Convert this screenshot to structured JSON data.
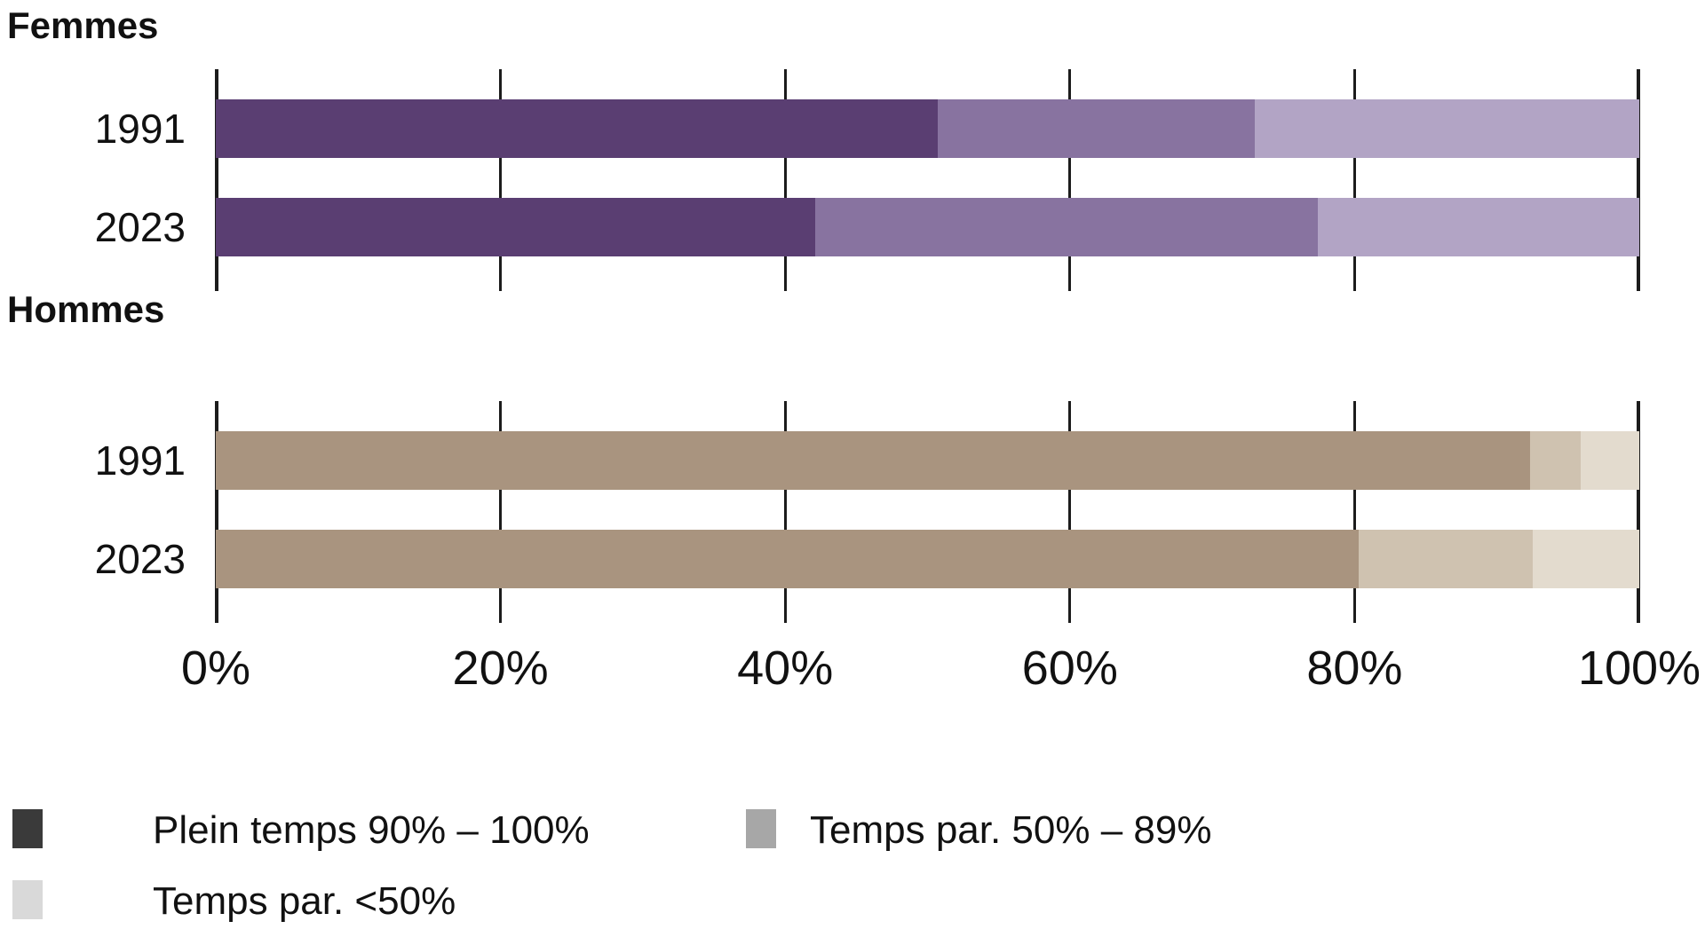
{
  "chart_data": {
    "type": "bar",
    "orientation": "horizontal",
    "stacked": true,
    "unit": "%",
    "xlim": [
      0,
      100
    ],
    "grid": "vertical-ticks",
    "legend_position": "bottom",
    "x_tick_labels": [
      "0%",
      "20%",
      "40%",
      "60%",
      "80%",
      "100%"
    ],
    "series_names": [
      "Plein temps 90% – 100%",
      "Temps par. 50% – 89%",
      "Temps par. <50%"
    ],
    "legend_swatch_colors": [
      "#3a3a3a",
      "#a7a7a7",
      "#d9d9d9"
    ],
    "groups": [
      {
        "title": "Femmes",
        "palette": [
          "#5a3e72",
          "#8873a0",
          "#b2a4c5"
        ],
        "rows": [
          {
            "label": "1991",
            "values": [
              50.7,
              22.3,
              27.0
            ]
          },
          {
            "label": "2023",
            "values": [
              42.1,
              35.3,
              22.6
            ]
          }
        ]
      },
      {
        "title": "Hommes",
        "palette": [
          "#a9947f",
          "#cfc2b0",
          "#e3dbce"
        ],
        "rows": [
          {
            "label": "1991",
            "values": [
              92.3,
              3.6,
              4.1
            ]
          },
          {
            "label": "2023",
            "values": [
              80.3,
              12.2,
              7.5
            ]
          }
        ]
      }
    ]
  }
}
